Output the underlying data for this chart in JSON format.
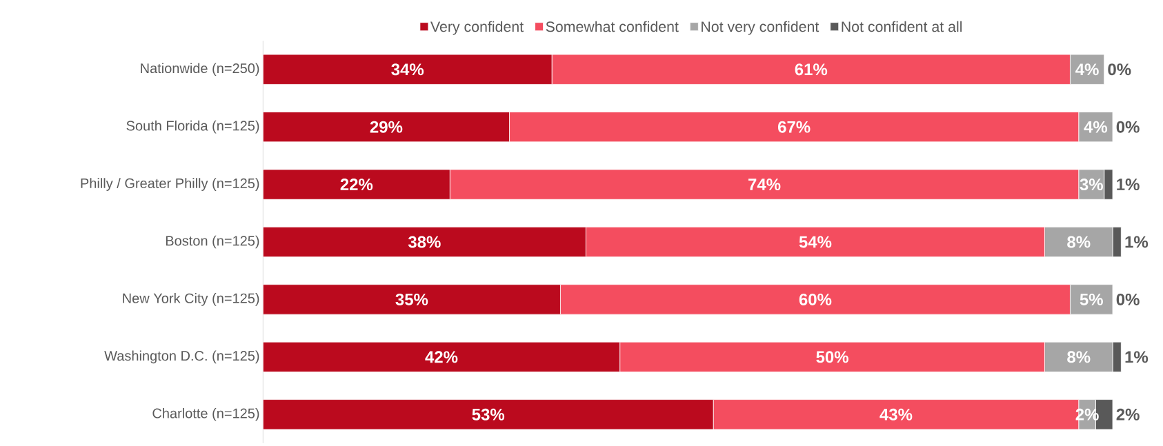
{
  "chart_data": {
    "type": "bar",
    "orientation": "horizontal",
    "stacked": true,
    "legend": "top",
    "categories": [
      "Nationwide (n=250)",
      "South Florida (n=125)",
      "Philly / Greater Philly (n=125)",
      "Boston (n=125)",
      "New York City (n=125)",
      "Washington D.C. (n=125)",
      "Charlotte (n=125)"
    ],
    "series": [
      {
        "name": "Very confident",
        "color": "#bb0a1e",
        "values": [
          34,
          29,
          22,
          38,
          35,
          42,
          53
        ],
        "value_labels": [
          "34%",
          "29%",
          "22%",
          "38%",
          "35%",
          "42%",
          "53%"
        ]
      },
      {
        "name": "Somewhat confident",
        "color": "#f44d5f",
        "values": [
          61,
          67,
          74,
          54,
          60,
          50,
          43
        ],
        "value_labels": [
          "61%",
          "67%",
          "74%",
          "54%",
          "60%",
          "50%",
          "43%"
        ]
      },
      {
        "name": "Not very confident",
        "color": "#a6a6a6",
        "values": [
          4,
          4,
          3,
          8,
          5,
          8,
          2
        ],
        "value_labels": [
          "4%",
          "4%",
          "3%",
          "8%",
          "5%",
          "8%",
          "2%"
        ]
      },
      {
        "name": "Not confident at all",
        "color": "#595959",
        "values": [
          0,
          0,
          1,
          1,
          0,
          1,
          2
        ],
        "value_labels": [
          "0%",
          "0%",
          "1%",
          "1%",
          "0%",
          "1%",
          "2%"
        ]
      }
    ]
  }
}
